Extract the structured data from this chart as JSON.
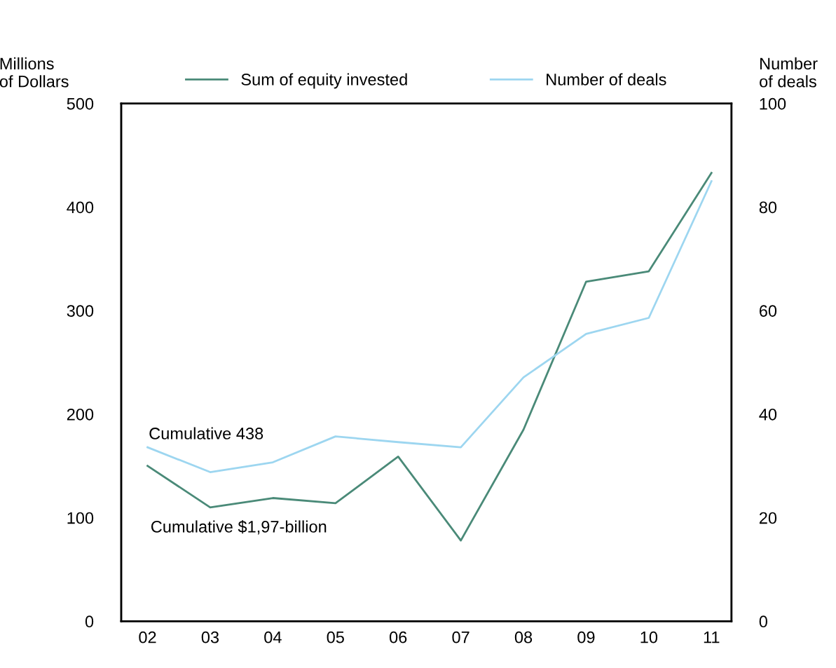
{
  "chart_data": {
    "type": "line",
    "ylabel": "Millions\nof Dollars",
    "y2label": "Number\nof deals",
    "categories": [
      "02",
      "03",
      "04",
      "05",
      "06",
      "07",
      "08",
      "09",
      "10",
      "11"
    ],
    "series": [
      {
        "name": "Sum of equity invested",
        "color": "#4a8a78",
        "values": [
          150,
          110,
          119,
          114,
          159,
          78,
          185,
          328,
          338,
          433
        ]
      },
      {
        "name": "Number of deals",
        "color": "#9dd6f0",
        "axis": "y2",
        "values": [
          33.6,
          28.8,
          30.7,
          35.7,
          34.6,
          33.6,
          47.1,
          55.5,
          58.6,
          85
        ]
      }
    ],
    "ylim": [
      0,
      500
    ],
    "yticks": [
      0,
      100,
      200,
      300,
      400,
      500
    ],
    "y2lim": [
      0,
      100
    ],
    "y2ticks": [
      0,
      20,
      40,
      60,
      80,
      100
    ],
    "annotations": [
      "Cumulative 438",
      "Cumulative $1,97-billion"
    ],
    "legend": "top",
    "grid": false
  }
}
